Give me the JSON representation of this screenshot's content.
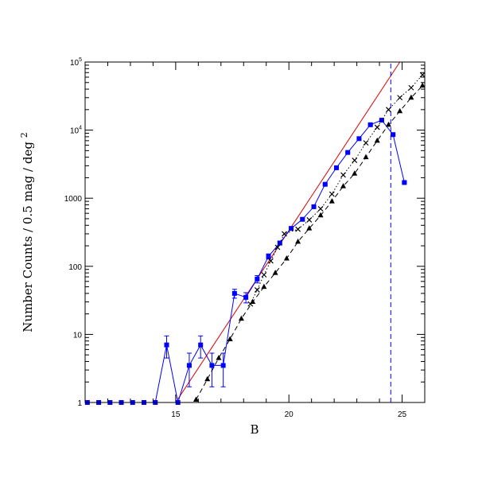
{
  "chart_data": {
    "type": "line",
    "xlabel": "B",
    "ylabel": "Number Counts / 0.5 mag / deg 2",
    "ylabel_parts": {
      "main": "Number Counts / 0.5 mag / deg ",
      "sup": "2"
    },
    "xlim": [
      11,
      26
    ],
    "ylim": [
      1,
      100000
    ],
    "y_scale": "log",
    "x_ticks": [
      15,
      20,
      25
    ],
    "x_tick_labels": [
      "15",
      "20",
      "25"
    ],
    "y_ticks": [
      1,
      10,
      100,
      1000,
      10000,
      100000
    ],
    "y_tick_labels": [
      {
        "value": 1,
        "text": "1",
        "base": "1",
        "sup": ""
      },
      {
        "value": 10,
        "text": "10",
        "base": "10",
        "sup": ""
      },
      {
        "value": 100,
        "text": "100",
        "base": "100",
        "sup": ""
      },
      {
        "value": 1000,
        "text": "1000",
        "base": "1000",
        "sup": ""
      },
      {
        "value": 10000,
        "text": "10⁴",
        "base": "10",
        "sup": "4"
      },
      {
        "value": 100000,
        "text": "10⁵",
        "base": "10",
        "sup": "5"
      }
    ],
    "series": [
      {
        "style": "blue-squares-solid",
        "color": "#0000ff",
        "marker": "square",
        "x": [
          11.1,
          11.6,
          12.1,
          12.6,
          13.1,
          13.6,
          14.1,
          14.6,
          15.1,
          15.6,
          16.1,
          16.6,
          17.1,
          17.6,
          18.1,
          18.6,
          19.1,
          19.6,
          20.1,
          20.6,
          21.1,
          21.6,
          22.1,
          22.6,
          23.1,
          23.6,
          24.1,
          24.6,
          25.1
        ],
        "y": [
          1,
          1,
          1,
          1,
          1,
          1,
          1,
          7,
          1,
          3.5,
          7,
          3.5,
          3.5,
          40,
          35,
          65,
          140,
          220,
          360,
          490,
          750,
          1600,
          2800,
          4700,
          7500,
          12000,
          14000,
          8600,
          1700
        ],
        "err_low": [
          0,
          0,
          0,
          0,
          0,
          0,
          0,
          2.5,
          0,
          1.8,
          2.5,
          1.8,
          1.8,
          6,
          6,
          8,
          12,
          15,
          20,
          23,
          28,
          40,
          55,
          70,
          90,
          110,
          120,
          95,
          40
        ],
        "err_high": [
          0,
          0,
          0,
          0,
          0,
          0,
          0,
          2.5,
          0,
          1.8,
          2.5,
          1.8,
          1.8,
          6,
          6,
          8,
          12,
          15,
          20,
          23,
          28,
          40,
          55,
          70,
          90,
          110,
          120,
          95,
          40
        ]
      },
      {
        "style": "black-triangles-dashed",
        "color": "#000000",
        "marker": "triangle",
        "x": [
          15.9,
          16.4,
          16.9,
          17.4,
          17.9,
          18.4,
          18.9,
          19.4,
          19.9,
          20.4,
          20.9,
          21.4,
          21.9,
          22.4,
          22.9,
          23.4,
          23.9,
          24.4,
          24.9,
          25.4,
          25.9
        ],
        "y": [
          1.1,
          2.2,
          4.5,
          8.5,
          17,
          30,
          50,
          80,
          130,
          230,
          360,
          560,
          900,
          1500,
          2300,
          4000,
          7000,
          12000,
          19000,
          30000,
          45000
        ]
      },
      {
        "style": "black-crosses-dotted",
        "color": "#000000",
        "marker": "cross",
        "x": [
          18.3,
          18.6,
          18.9,
          19.2,
          19.5,
          19.8,
          20.4,
          20.9,
          21.4,
          21.9,
          22.4,
          22.9,
          23.4,
          23.9,
          24.4,
          24.9,
          25.4,
          25.9
        ],
        "y": [
          28,
          45,
          75,
          120,
          190,
          300,
          350,
          480,
          700,
          1150,
          2200,
          3600,
          6500,
          11000,
          20000,
          30000,
          42000,
          65000
        ]
      }
    ],
    "reference_lines": [
      {
        "style": "red-solid",
        "color": "#dd0000",
        "x": [
          15,
          24.9
        ],
        "y": [
          1,
          100000
        ]
      },
      {
        "style": "blue-vertical-dashed",
        "color": "#0000ff",
        "x": [
          24.5,
          24.5
        ],
        "y": [
          1,
          100000
        ]
      }
    ]
  }
}
